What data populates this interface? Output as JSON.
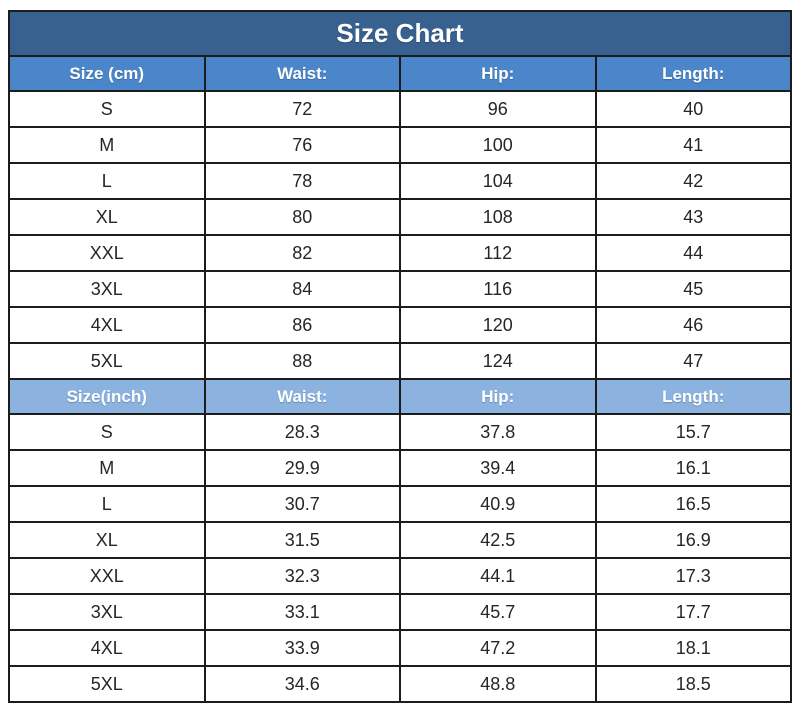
{
  "title": "Size Chart",
  "colors": {
    "title_bg": "#38618f",
    "header_cm_bg": "#4a86c9",
    "header_inch_bg": "#8cb2e0",
    "border": "#1c1c1c",
    "header_text": "#ffffff",
    "cell_text": "#262626",
    "row_bg": "#ffffff"
  },
  "chart_data": [
    {
      "type": "table",
      "title": "Size Chart",
      "unit": "cm",
      "columns": [
        "Size (cm)",
        "Waist:",
        "Hip:",
        "Length:"
      ],
      "rows": [
        [
          "S",
          "72",
          "96",
          "40"
        ],
        [
          "M",
          "76",
          "100",
          "41"
        ],
        [
          "L",
          "78",
          "104",
          "42"
        ],
        [
          "XL",
          "80",
          "108",
          "43"
        ],
        [
          "XXL",
          "82",
          "112",
          "44"
        ],
        [
          "3XL",
          "84",
          "116",
          "45"
        ],
        [
          "4XL",
          "86",
          "120",
          "46"
        ],
        [
          "5XL",
          "88",
          "124",
          "47"
        ]
      ]
    },
    {
      "type": "table",
      "unit": "inch",
      "columns": [
        "Size(inch)",
        "Waist:",
        "Hip:",
        "Length:"
      ],
      "rows": [
        [
          "S",
          "28.3",
          "37.8",
          "15.7"
        ],
        [
          "M",
          "29.9",
          "39.4",
          "16.1"
        ],
        [
          "L",
          "30.7",
          "40.9",
          "16.5"
        ],
        [
          "XL",
          "31.5",
          "42.5",
          "16.9"
        ],
        [
          "XXL",
          "32.3",
          "44.1",
          "17.3"
        ],
        [
          "3XL",
          "33.1",
          "45.7",
          "17.7"
        ],
        [
          "4XL",
          "33.9",
          "47.2",
          "18.1"
        ],
        [
          "5XL",
          "34.6",
          "48.8",
          "18.5"
        ]
      ]
    }
  ]
}
